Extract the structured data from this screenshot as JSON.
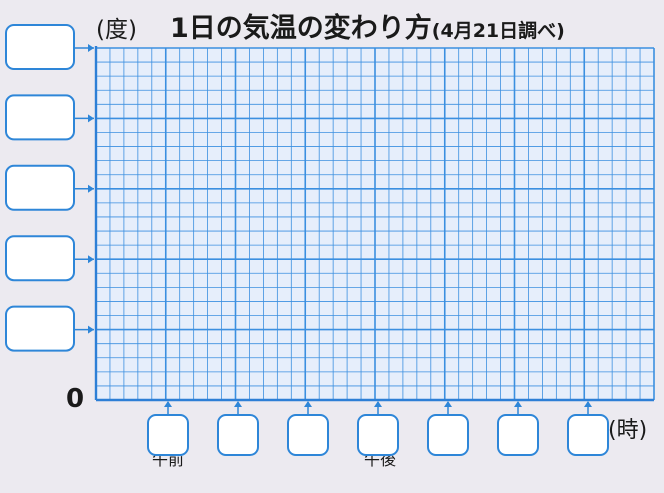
{
  "chart_data": {
    "type": "line",
    "title": "1日の気温の変わり方",
    "subtitle": "(4月21日調べ)",
    "ylabel": "(度)",
    "xlabel": "(時)",
    "y_origin_label": "0",
    "x_period_labels": [
      "午前",
      "午後"
    ],
    "grid": true,
    "series": [],
    "y_tick_boxes": 5,
    "x_tick_boxes": 7
  },
  "colors": {
    "grid": "#3b8fe0",
    "axis": "#2d7fd6",
    "box": "#2e86d8",
    "background": "#eceaf0"
  }
}
